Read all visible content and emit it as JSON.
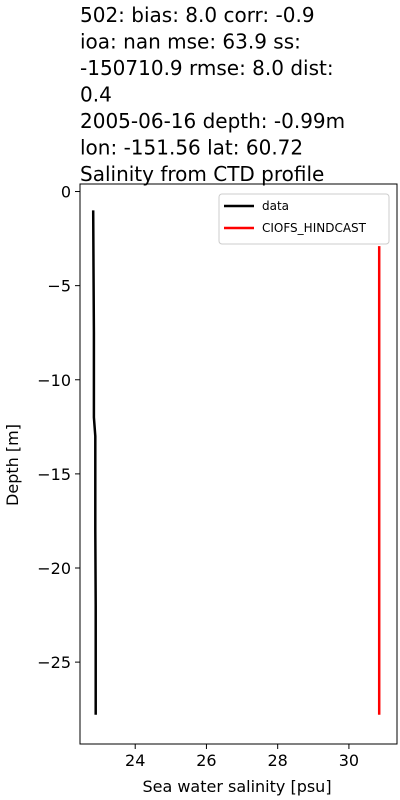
{
  "chart_data": {
    "type": "line",
    "title_lines": [
      "502: bias: 8.0  corr: -0.9",
      "ioa: nan  mse: 63.9  ss:",
      "-150710.9  rmse: 8.0  dist:",
      "0.4",
      "2005-06-16 depth: -0.99m",
      "lon: -151.56 lat: 60.72",
      "Salinity from CTD profile"
    ],
    "xlabel": "Sea water salinity [psu]",
    "ylabel": "Depth [m]",
    "xlim": [
      22.45,
      31.35
    ],
    "ylim": [
      -29.35,
      0.4
    ],
    "xticks": [
      24,
      26,
      28,
      30
    ],
    "xtick_labels": [
      "24",
      "26",
      "28",
      "30"
    ],
    "yticks": [
      0,
      -5,
      -10,
      -15,
      -20,
      -25
    ],
    "ytick_labels": [
      "0",
      "−5",
      "−10",
      "−15",
      "−20",
      "−25"
    ],
    "grid": false,
    "legend_position": "top-right",
    "series": [
      {
        "name": "data",
        "color": "#000000",
        "points": [
          [
            22.82,
            -1.0
          ],
          [
            22.83,
            -4.0
          ],
          [
            22.84,
            -7.5
          ],
          [
            22.84,
            -12.0
          ],
          [
            22.88,
            -13.0
          ],
          [
            22.88,
            -18.0
          ],
          [
            22.89,
            -22.0
          ],
          [
            22.89,
            -27.8
          ]
        ]
      },
      {
        "name": "CIOFS_HINDCAST",
        "color": "#ff0000",
        "points": [
          [
            30.85,
            -2.9
          ],
          [
            30.85,
            -27.8
          ]
        ]
      }
    ]
  }
}
